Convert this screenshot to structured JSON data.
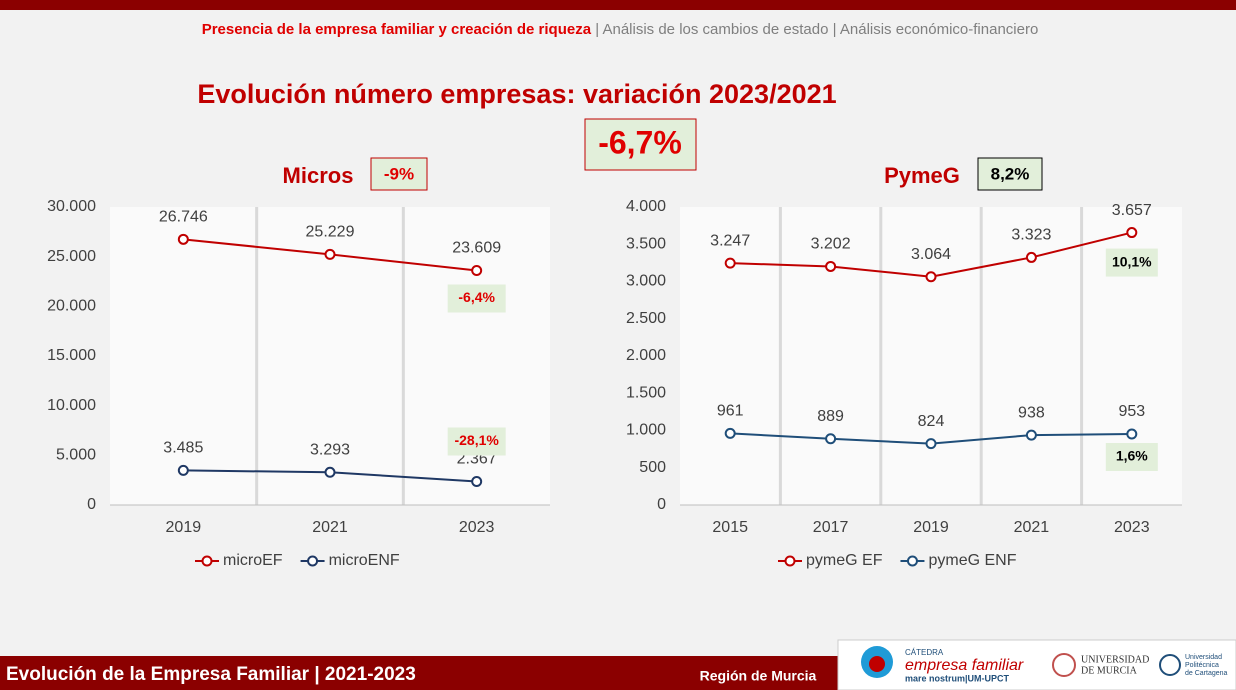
{
  "header": {
    "items": [
      "Presencia de la empresa familiar y creación de riqueza",
      "Análisis de los cambios de estado",
      "Análisis económico-financiero"
    ],
    "separator": "|"
  },
  "title": "Evolución número empresas: variación 2023/2021",
  "total_change": "-6,7%",
  "chart_data": [
    {
      "type": "line",
      "title": "Micros",
      "badge": "-9%",
      "categories": [
        "2019",
        "2021",
        "2023"
      ],
      "series": [
        {
          "name": "microEF",
          "color": "#c00000",
          "values": [
            26746,
            25229,
            23609
          ],
          "value_labels": [
            "26.746",
            "25.229",
            "23.609"
          ],
          "annotation": "-6,4%"
        },
        {
          "name": "microENF",
          "color": "#1f3864",
          "values": [
            3485,
            3293,
            2367
          ],
          "value_labels": [
            "3.485",
            "3.293",
            "2.367"
          ],
          "annotation": "-28,1%"
        }
      ],
      "ylim": [
        0,
        30000
      ],
      "yticks": [
        0,
        {
          "value": 5000,
          "label": "5.000"
        },
        {
          "value": 10000,
          "label": "10.000"
        },
        {
          "value": 15000,
          "label": "15.000"
        },
        {
          "value": 20000,
          "label": "20.000"
        },
        {
          "value": 25000,
          "label": "25.000"
        },
        {
          "value": 30000,
          "label": "30.000"
        }
      ],
      "legend": "bottom"
    },
    {
      "type": "line",
      "title": "PymeG",
      "badge": "8,2%",
      "categories": [
        "2015",
        "2017",
        "2019",
        "2021",
        "2023"
      ],
      "series": [
        {
          "name": "pymeG EF",
          "color": "#c00000",
          "values": [
            3247,
            3202,
            3064,
            3323,
            3657
          ],
          "value_labels": [
            "3.247",
            "3.202",
            "3.064",
            "3.323",
            "3.657"
          ],
          "annotation": "10,1%"
        },
        {
          "name": "pymeG ENF",
          "color": "#1f4e79",
          "values": [
            961,
            889,
            824,
            938,
            953
          ],
          "annotation": "1,6%"
        }
      ],
      "ylim": [
        0,
        4000
      ],
      "yticks": [
        0,
        500,
        {
          "value": 1000,
          "label": "1.000"
        },
        {
          "value": 1500,
          "label": "1.500"
        },
        {
          "value": 2000,
          "label": "2.000"
        },
        {
          "value": 2500,
          "label": "2.500"
        },
        {
          "value": 3000,
          "label": "3.000"
        },
        {
          "value": 3500,
          "label": "3.500"
        },
        {
          "value": 4000,
          "label": "4.000"
        }
      ],
      "legend": "bottom"
    }
  ],
  "footer": {
    "left": "Evolución de la Empresa Familiar | 2021-2023",
    "region": "Región de Murcia",
    "logos": {
      "catedra": "CÁTEDRA",
      "ef": "empresa familiar",
      "mn": "mare nostrum|UM-UPCT",
      "um1": "UNIVERSIDAD",
      "um2": "DE MURCIA",
      "upct1": "Universidad",
      "upct2": "Politécnica",
      "upct3": "de Cartagena"
    }
  }
}
